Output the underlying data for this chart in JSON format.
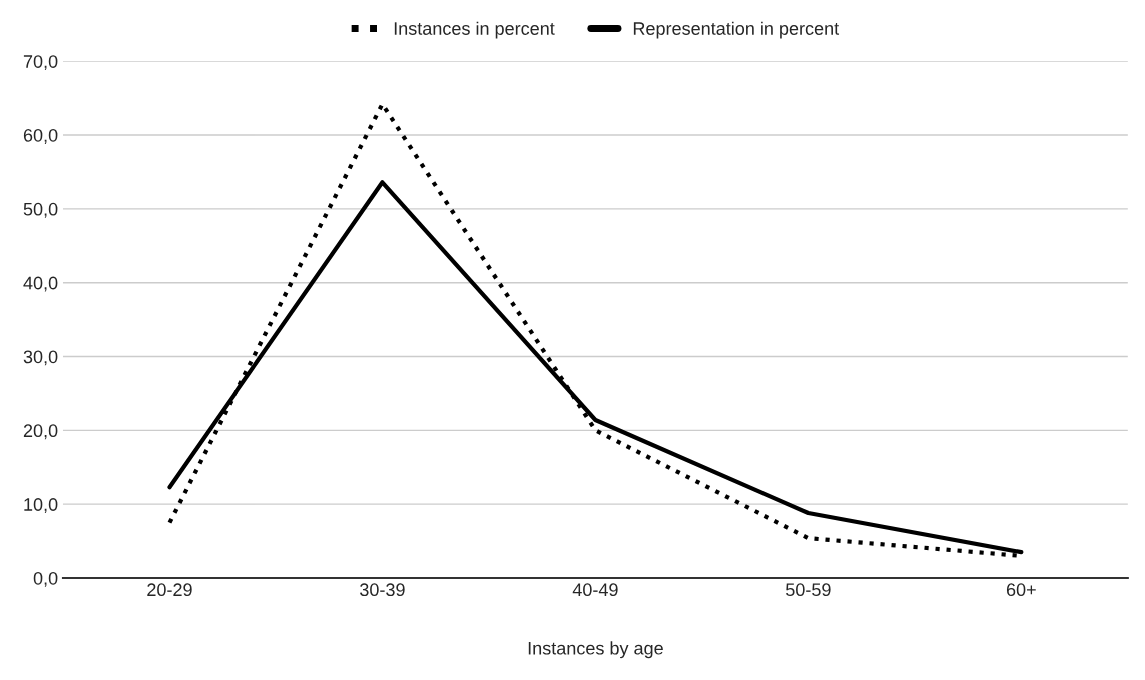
{
  "chart_data": {
    "type": "line",
    "xlabel": "Instances by age",
    "categories": [
      "20-29",
      "30-39",
      "40-49",
      "50-59",
      "60+"
    ],
    "series": [
      {
        "name": "Instances in percent",
        "color": "#000000",
        "line_style": "dotted",
        "values": [
          7.5,
          64.2,
          20.0,
          5.4,
          3.0
        ]
      },
      {
        "name": "Representation in percent",
        "color": "#000000",
        "line_style": "solid",
        "values": [
          12.3,
          53.6,
          21.4,
          8.8,
          3.5
        ]
      }
    ],
    "ylim": [
      0,
      70
    ],
    "yticks": [
      {
        "value": 0,
        "label": "0,0"
      },
      {
        "value": 10,
        "label": "10,0"
      },
      {
        "value": 20,
        "label": "20,0"
      },
      {
        "value": 30,
        "label": "30,0"
      },
      {
        "value": 40,
        "label": "40,0"
      },
      {
        "value": 50,
        "label": "50,0"
      },
      {
        "value": 60,
        "label": "60,0"
      },
      {
        "value": 70,
        "label": "70,0"
      }
    ],
    "grid": "y",
    "legend": "top",
    "marker": "none"
  }
}
